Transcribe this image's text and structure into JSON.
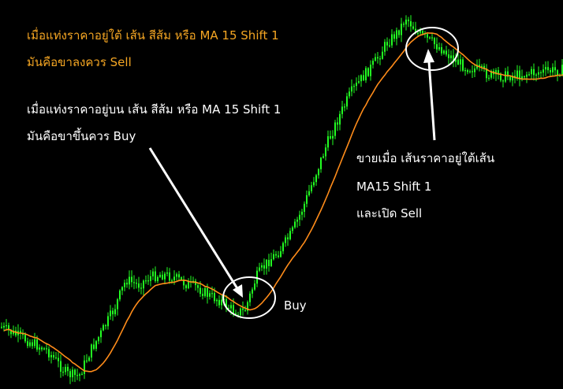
{
  "chart_data": {
    "type": "candlestick",
    "grid": false,
    "background_color": "#000000",
    "candle_color": "#22ff22",
    "ma_color": "#ff8c1a",
    "ma_series_description": "MA 15 Shift 1",
    "annotations": {
      "top_left_line1": "เมื่อแท่งราคาอยู่ใต้ เส้น สีส้ม หรือ MA 15 Shift 1",
      "top_left_line2": "มันคือขาลงควร Sell",
      "middle_left_line1": "เมื่อแท่งราคาอยู่บน เส้น สีส้ม หรือ MA 15 Shift 1",
      "middle_left_line2": "มันคือขาขึ้นควร Buy",
      "buy_label": "Buy",
      "sell_line1": "ขายเมื่อ เส้นราคาอยู่ใต้เส้น",
      "sell_line2": "MA15 Shift 1",
      "sell_line3": "และเปิด Sell"
    }
  }
}
